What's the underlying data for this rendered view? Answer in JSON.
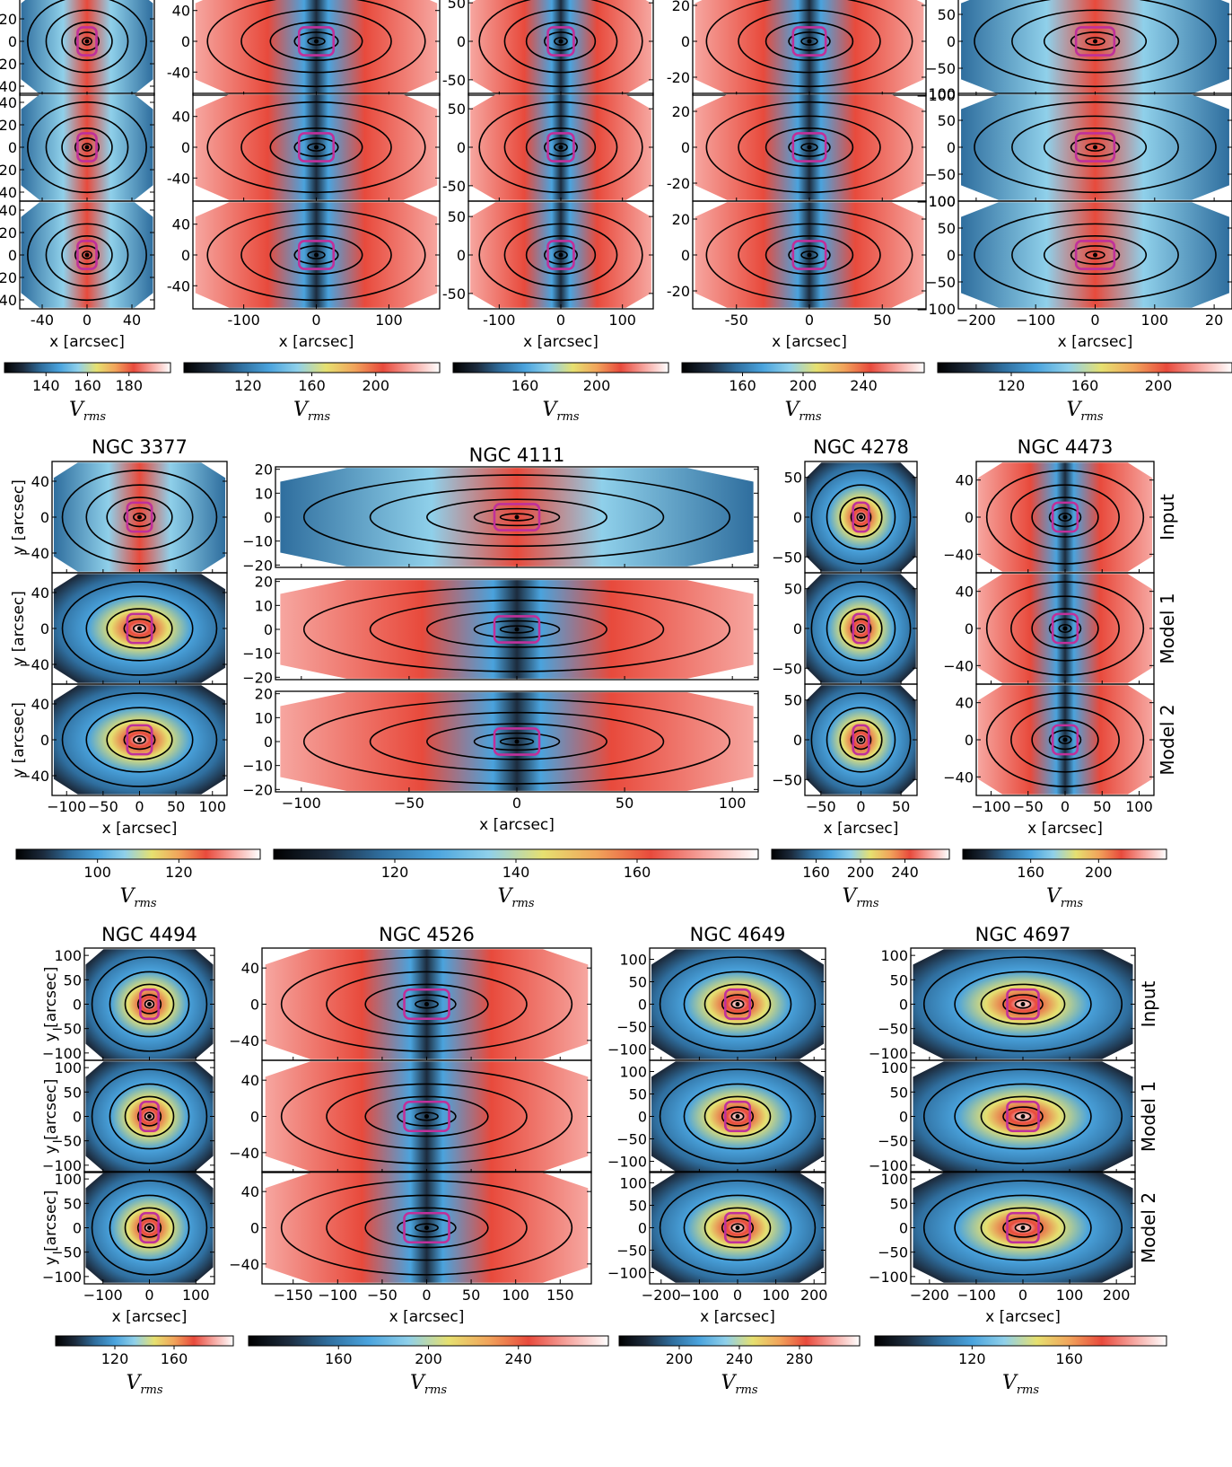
{
  "figure": {
    "row_labels": [
      "Input",
      "Model 1",
      "Model 2"
    ],
    "x_axis_label": "x [arcsec]",
    "y_axis_label": "y [arcsec]",
    "colorbar_label_main": "V",
    "colorbar_label_sub": "rms"
  },
  "colors": {
    "panel_frame": "#000000",
    "aperture_outline": "#c0309a",
    "contour": "#000000",
    "colormap": [
      "#000000",
      "#1c2b3d",
      "#2f6e9e",
      "#4aa3dd",
      "#8fd0ea",
      "#e6e070",
      "#f1a45b",
      "#e84a3c",
      "#f6a6a0",
      "#ffffff"
    ]
  },
  "chart_data": [
    {
      "type": "heatmap",
      "title": "",
      "xticks": [
        "-40",
        "0",
        "40"
      ],
      "xlim": [
        -60,
        60
      ],
      "yticks": [
        "40",
        "20",
        "0",
        "-20",
        "-40"
      ],
      "ylim": [
        -48,
        48
      ],
      "colorbar_ticks": [
        "140",
        "160",
        "180"
      ],
      "shown_y_label": false,
      "shown_row_labels": false,
      "maps": [
        {
          "row": "Input",
          "band": "minor"
        },
        {
          "row": "Model 1",
          "band": "minor"
        },
        {
          "row": "Model 2",
          "band": "minor"
        }
      ]
    },
    {
      "type": "heatmap",
      "title": "",
      "xticks": [
        "-100",
        "0",
        "100"
      ],
      "xlim": [
        -170,
        170
      ],
      "yticks": [
        "40",
        "0",
        "-40"
      ],
      "ylim": [
        -70,
        70
      ],
      "colorbar_ticks": [
        "120",
        "160",
        "200"
      ],
      "shown_y_label": false,
      "shown_row_labels": false,
      "maps": [
        {
          "row": "Input",
          "band": "x"
        },
        {
          "row": "Model 1",
          "band": "x"
        },
        {
          "row": "Model 2",
          "band": "x"
        }
      ]
    },
    {
      "type": "heatmap",
      "title": "",
      "xticks": [
        "-100",
        "0",
        "100"
      ],
      "xlim": [
        -150,
        150
      ],
      "yticks": [
        "50",
        "0",
        "-50"
      ],
      "ylim": [
        -70,
        70
      ],
      "colorbar_ticks": [
        "160",
        "200"
      ],
      "shown_y_label": false,
      "shown_row_labels": false,
      "maps": [
        {
          "row": "Input",
          "band": "x"
        },
        {
          "row": "Model 1",
          "band": "x"
        },
        {
          "row": "Model 2",
          "band": "x"
        }
      ]
    },
    {
      "type": "heatmap",
      "title": "",
      "xticks": [
        "-50",
        "0",
        "50"
      ],
      "xlim": [
        -80,
        80
      ],
      "yticks": [
        "20",
        "0",
        "-20"
      ],
      "ylim": [
        -30,
        30
      ],
      "colorbar_ticks": [
        "160",
        "200",
        "240"
      ],
      "shown_y_label": false,
      "shown_row_labels": false,
      "maps": [
        {
          "row": "Input",
          "band": "x"
        },
        {
          "row": "Model 1",
          "band": "x"
        },
        {
          "row": "Model 2",
          "band": "x"
        }
      ]
    },
    {
      "type": "heatmap",
      "title": "",
      "xticks": [
        "−200",
        "−100",
        "0",
        "100",
        "20"
      ],
      "xlim": [
        -230,
        230
      ],
      "yticks": [
        "100",
        "50",
        "0",
        "−50",
        "−100"
      ],
      "ylim": [
        -100,
        100
      ],
      "colorbar_ticks": [
        "120",
        "160",
        "200"
      ],
      "shown_y_label": false,
      "shown_row_labels": false,
      "maps": [
        {
          "row": "Input",
          "band": "minor"
        },
        {
          "row": "Model 1",
          "band": "minor"
        },
        {
          "row": "Model 2",
          "band": "minor"
        }
      ]
    },
    {
      "type": "heatmap",
      "title": "NGC 3377",
      "xticks": [
        "−100",
        "−50",
        "0",
        "50",
        "100"
      ],
      "xlim": [
        -120,
        120
      ],
      "yticks": [
        "40",
        "0",
        "−40"
      ],
      "ylim": [
        -62,
        62
      ],
      "colorbar_ticks": [
        "100",
        "120"
      ],
      "shown_y_label": true,
      "shown_row_labels": false,
      "maps": [
        {
          "row": "Input",
          "band": "minor"
        },
        {
          "row": "Model 1",
          "band": "core"
        },
        {
          "row": "Model 2",
          "band": "core"
        }
      ]
    },
    {
      "type": "heatmap",
      "title": "NGC 4111",
      "xticks": [
        "−100",
        "−50",
        "0",
        "50",
        "100"
      ],
      "xlim": [
        -112,
        112
      ],
      "yticks": [
        "20",
        "10",
        "0",
        "−10",
        "−20"
      ],
      "ylim": [
        -21,
        21
      ],
      "colorbar_ticks": [
        "120",
        "140",
        "160"
      ],
      "shown_y_label": false,
      "shown_row_labels": false,
      "maps": [
        {
          "row": "Input",
          "band": "minor"
        },
        {
          "row": "Model 1",
          "band": "x"
        },
        {
          "row": "Model 2",
          "band": "x"
        }
      ]
    },
    {
      "type": "heatmap",
      "title": "NGC 4278",
      "xticks": [
        "−50",
        "0",
        "50"
      ],
      "xlim": [
        -70,
        70
      ],
      "yticks": [
        "50",
        "0",
        "−50"
      ],
      "ylim": [
        -70,
        70
      ],
      "colorbar_ticks": [
        "160",
        "200",
        "240"
      ],
      "shown_y_label": false,
      "shown_row_labels": false,
      "maps": [
        {
          "row": "Input",
          "band": "core"
        },
        {
          "row": "Model 1",
          "band": "core"
        },
        {
          "row": "Model 2",
          "band": "core"
        }
      ]
    },
    {
      "type": "heatmap",
      "title": "NGC 4473",
      "xticks": [
        "−100",
        "−50",
        "0",
        "50",
        "100"
      ],
      "xlim": [
        -120,
        120
      ],
      "yticks": [
        "40",
        "0",
        "−40"
      ],
      "ylim": [
        -60,
        60
      ],
      "colorbar_ticks": [
        "160",
        "200"
      ],
      "shown_y_label": false,
      "shown_row_labels": true,
      "maps": [
        {
          "row": "Input",
          "band": "x"
        },
        {
          "row": "Model 1",
          "band": "x"
        },
        {
          "row": "Model 2",
          "band": "x"
        }
      ]
    },
    {
      "type": "heatmap",
      "title": "NGC 4494",
      "xticks": [
        "−100",
        "0",
        "100"
      ],
      "xlim": [
        -140,
        140
      ],
      "yticks": [
        "100",
        "50",
        "0",
        "−50",
        "−100"
      ],
      "ylim": [
        -115,
        115
      ],
      "colorbar_ticks": [
        "120",
        "160"
      ],
      "shown_y_label": true,
      "shown_row_labels": false,
      "maps": [
        {
          "row": "Input",
          "band": "core"
        },
        {
          "row": "Model 1",
          "band": "core"
        },
        {
          "row": "Model 2",
          "band": "core"
        }
      ]
    },
    {
      "type": "heatmap",
      "title": "NGC 4526",
      "xticks": [
        "−150",
        "−100",
        "−50",
        "0",
        "50",
        "100",
        "150"
      ],
      "xlim": [
        -185,
        185
      ],
      "yticks": [
        "40",
        "0",
        "−40"
      ],
      "ylim": [
        -62,
        62
      ],
      "colorbar_ticks": [
        "160",
        "200",
        "240"
      ],
      "shown_y_label": false,
      "shown_row_labels": false,
      "maps": [
        {
          "row": "Input",
          "band": "x"
        },
        {
          "row": "Model 1",
          "band": "x"
        },
        {
          "row": "Model 2",
          "band": "x"
        }
      ]
    },
    {
      "type": "heatmap",
      "title": "NGC 4649",
      "xticks": [
        "−200",
        "−100",
        "0",
        "100",
        "200"
      ],
      "xlim": [
        -230,
        230
      ],
      "yticks": [
        "100",
        "50",
        "0",
        "−50",
        "−100"
      ],
      "ylim": [
        -125,
        125
      ],
      "colorbar_ticks": [
        "200",
        "240",
        "280"
      ],
      "shown_y_label": false,
      "shown_row_labels": false,
      "maps": [
        {
          "row": "Input",
          "band": "core"
        },
        {
          "row": "Model 1",
          "band": "core"
        },
        {
          "row": "Model 2",
          "band": "core"
        }
      ]
    },
    {
      "type": "heatmap",
      "title": "NGC 4697",
      "xticks": [
        "−200",
        "−100",
        "0",
        "100",
        "200"
      ],
      "xlim": [
        -240,
        240
      ],
      "yticks": [
        "100",
        "50",
        "0",
        "−50",
        "−100"
      ],
      "ylim": [
        -115,
        115
      ],
      "colorbar_ticks": [
        "120",
        "160"
      ],
      "shown_y_label": false,
      "shown_row_labels": true,
      "maps": [
        {
          "row": "Input",
          "band": "core"
        },
        {
          "row": "Model 1",
          "band": "core"
        },
        {
          "row": "Model 2",
          "band": "core"
        }
      ]
    }
  ]
}
